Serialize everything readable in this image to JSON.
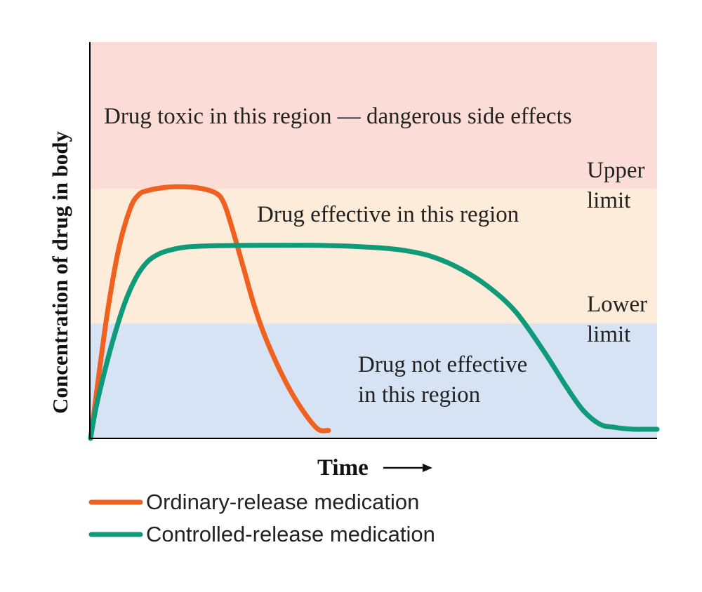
{
  "chart_data": {
    "type": "line",
    "title": "",
    "xlabel": "Time",
    "ylabel": "Concentration of drug in body",
    "xlim": [
      0,
      100
    ],
    "ylim": [
      0,
      100
    ],
    "grid": false,
    "legend_placement": "bottom-left",
    "colors": {
      "toxic_region": "#fcdcd6",
      "effective_region": "#fdecd9",
      "not_effective_region": "#d6e3f4",
      "ordinary": "#f0601e",
      "controlled": "#0f9a7a",
      "axis": "#000000"
    },
    "regions": [
      {
        "id": "toxic",
        "y_range": [
          63,
          100
        ],
        "label": "Drug toxic in this region — dangerous side effects"
      },
      {
        "id": "effective",
        "y_range": [
          29,
          63
        ],
        "label": "Drug effective in this region"
      },
      {
        "id": "not_effective",
        "y_range": [
          0,
          29
        ],
        "label_lines": [
          "Drug not effective",
          "in this region"
        ]
      }
    ],
    "limits": [
      {
        "name": "upper",
        "y": 63,
        "label_lines": [
          "Upper",
          "limit"
        ]
      },
      {
        "name": "lower",
        "y": 29,
        "label_lines": [
          "Lower",
          "limit"
        ]
      }
    ],
    "series": [
      {
        "name": "Ordinary-release medication",
        "x": [
          0,
          1,
          3,
          5,
          7,
          8.5,
          10,
          13,
          16,
          19,
          22,
          23.5,
          25,
          27,
          29,
          31,
          34,
          37,
          40,
          42
        ],
        "y": [
          0,
          11,
          32,
          48,
          58,
          61.5,
          62.5,
          63.3,
          63.5,
          63.2,
          62,
          59.5,
          53,
          43,
          33,
          25,
          15.5,
          8,
          2.5,
          2
        ]
      },
      {
        "name": "Controlled-release medication",
        "x": [
          0,
          1,
          2.5,
          4,
          6,
          8,
          10,
          12,
          14,
          17,
          22,
          30,
          40,
          50,
          55,
          60,
          65,
          70,
          75,
          80,
          84,
          87,
          90,
          92.5,
          94,
          96,
          98,
          100
        ],
        "y": [
          0,
          8,
          17,
          25,
          34,
          40.5,
          44.5,
          46.5,
          47.5,
          48.3,
          48.6,
          48.7,
          48.7,
          48.2,
          47.5,
          46,
          43,
          38.5,
          32,
          22,
          13,
          7,
          3.5,
          2.8,
          2.5,
          2.3,
          2.3,
          2.3
        ]
      }
    ]
  }
}
